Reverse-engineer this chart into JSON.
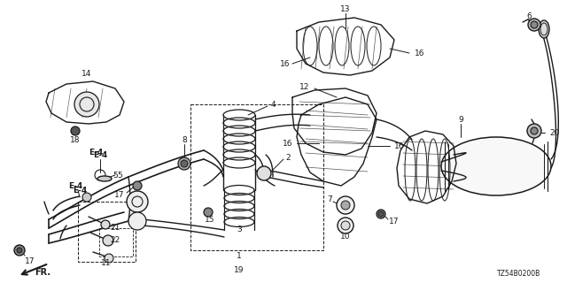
{
  "bg_color": "#ffffff",
  "line_color": "#1a1a1a",
  "diagram_id": "TZ54B0200B",
  "figsize": [
    6.4,
    3.2
  ],
  "dpi": 100
}
